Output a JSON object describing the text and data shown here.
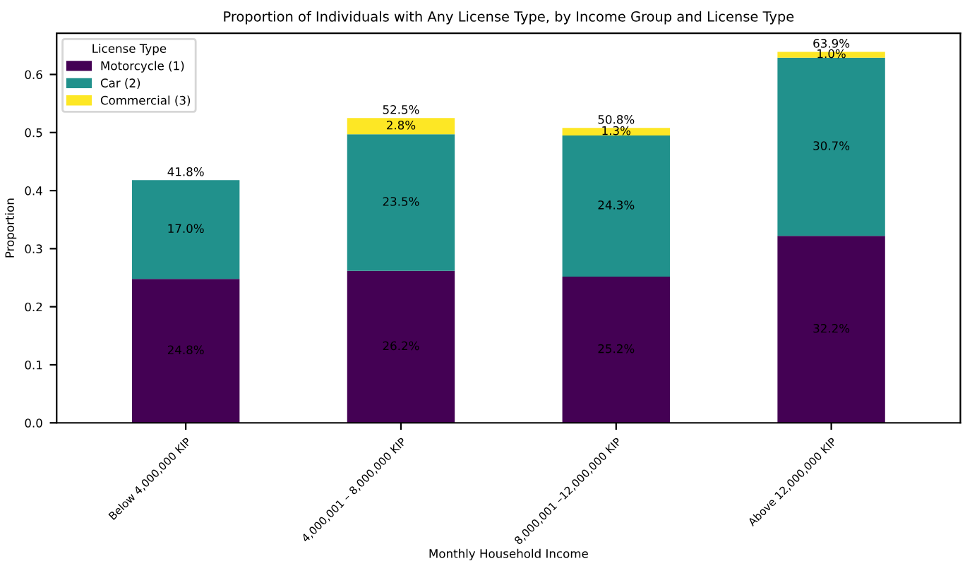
{
  "chart_data": {
    "type": "bar",
    "stacked": true,
    "title": "Proportion of Individuals with Any License Type, by Income Group and License Type",
    "xlabel": "Monthly Household Income",
    "ylabel": "Proportion",
    "legend_title": "License Type",
    "legend": "top left",
    "grid": false,
    "categories": [
      "Below 4,000,000 KIP",
      "4,000,001 – 8,000,000 KIP",
      "8,000,001 –12,000,000 KIP",
      "Above 12,000,000 KIP"
    ],
    "series": [
      {
        "name": "Motorcycle (1)",
        "color": "#440154",
        "values": [
          0.248,
          0.262,
          0.252,
          0.322
        ],
        "value_labels": [
          "24.8%",
          "26.2%",
          "25.2%",
          "32.2%"
        ]
      },
      {
        "name": "Car (2)",
        "color": "#21918c",
        "values": [
          0.17,
          0.235,
          0.243,
          0.307
        ],
        "value_labels": [
          "17.0%",
          "23.5%",
          "24.3%",
          "30.7%"
        ]
      },
      {
        "name": "Commercial (3)",
        "color": "#fde725",
        "values": [
          0,
          0.028,
          0.013,
          0.01
        ],
        "value_labels": [
          null,
          "2.8%",
          "1.3%",
          "1.0%"
        ]
      }
    ],
    "totals": [
      "41.8%",
      "52.5%",
      "50.8%",
      "63.9%"
    ],
    "ylim": [
      0,
      0.671
    ],
    "yticks": [
      {
        "value": 0,
        "label": "0.0"
      },
      0.1,
      0.2,
      0.3,
      0.4,
      0.5,
      0.6
    ]
  }
}
